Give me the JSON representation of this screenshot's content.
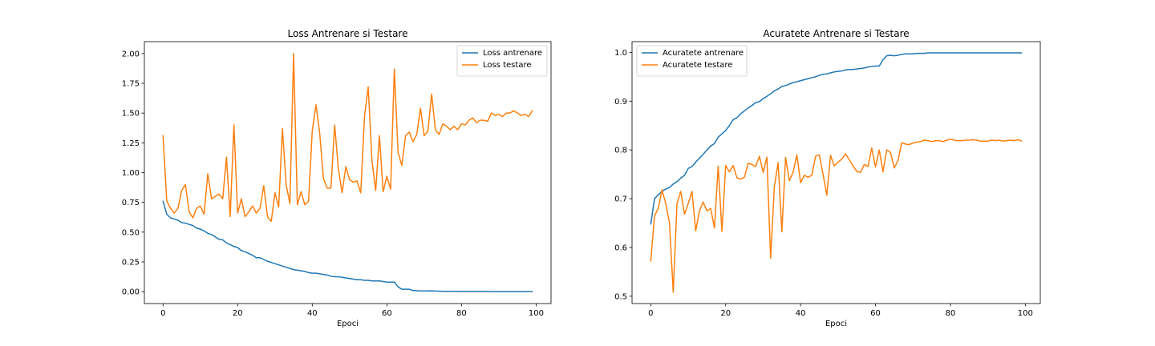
{
  "colors": {
    "series_1": "#1f77b4",
    "series_2": "#ff7f0e",
    "axes": "#000000",
    "background": "#ffffff"
  },
  "chart_data": [
    {
      "type": "line",
      "title": "Loss Antrenare si Testare",
      "xlabel": "Epoci",
      "ylabel": "",
      "xlim": [
        -5,
        104
      ],
      "ylim": [
        -0.1,
        2.1
      ],
      "xticks": [
        0,
        20,
        40,
        60,
        80,
        100
      ],
      "xtick_labels": [
        "0",
        "20",
        "40",
        "60",
        "80",
        "100"
      ],
      "yticks": [
        0,
        0.25,
        0.5,
        0.75,
        1.0,
        1.25,
        1.5,
        1.75,
        2.0
      ],
      "ytick_labels": [
        "0.00",
        "0.25",
        "0.50",
        "0.75",
        "1.00",
        "1.25",
        "1.50",
        "1.75",
        "2.00"
      ],
      "grid": false,
      "legend_position": "top-right",
      "series": [
        {
          "name": "Loss antrenare",
          "color": "#1f77b4",
          "values": [
            0.76,
            0.65,
            0.62,
            0.61,
            0.6,
            0.58,
            0.575,
            0.565,
            0.555,
            0.535,
            0.525,
            0.51,
            0.49,
            0.48,
            0.46,
            0.44,
            0.435,
            0.41,
            0.395,
            0.38,
            0.37,
            0.345,
            0.335,
            0.32,
            0.305,
            0.285,
            0.285,
            0.27,
            0.255,
            0.245,
            0.235,
            0.225,
            0.215,
            0.205,
            0.195,
            0.185,
            0.18,
            0.175,
            0.17,
            0.16,
            0.155,
            0.155,
            0.15,
            0.145,
            0.14,
            0.13,
            0.125,
            0.125,
            0.12,
            0.115,
            0.11,
            0.105,
            0.1,
            0.1,
            0.095,
            0.095,
            0.09,
            0.09,
            0.09,
            0.085,
            0.08,
            0.08,
            0.08,
            0.04,
            0.02,
            0.02,
            0.02,
            0.01,
            0.008,
            0.006,
            0.006,
            0.006,
            0.007,
            0.005,
            0.004,
            0.003,
            0.003,
            0.003,
            0.003,
            0.003,
            0.002,
            0.002,
            0.002,
            0.002,
            0.002,
            0.002,
            0.002,
            0.002,
            0.001,
            0.001,
            0.001,
            0.001,
            0.001,
            0.001,
            0.001,
            0.001,
            0.001,
            0.001,
            0.001,
            0.001
          ]
        },
        {
          "name": "Loss testare",
          "color": "#ff7f0e",
          "values": [
            1.31,
            0.76,
            0.7,
            0.66,
            0.7,
            0.85,
            0.9,
            0.67,
            0.62,
            0.7,
            0.72,
            0.65,
            0.99,
            0.78,
            0.8,
            0.82,
            0.78,
            1.13,
            0.63,
            1.4,
            0.66,
            0.78,
            0.63,
            0.67,
            0.72,
            0.66,
            0.7,
            0.89,
            0.63,
            0.59,
            0.83,
            0.71,
            1.37,
            0.9,
            0.74,
            2.0,
            0.73,
            0.84,
            0.73,
            0.76,
            1.35,
            1.57,
            1.33,
            0.95,
            0.87,
            0.87,
            1.4,
            1.03,
            0.83,
            1.05,
            0.94,
            0.92,
            0.93,
            0.83,
            1.47,
            1.72,
            1.1,
            0.85,
            1.31,
            0.84,
            0.97,
            0.86,
            1.87,
            1.17,
            1.06,
            1.31,
            1.34,
            1.26,
            1.32,
            1.54,
            1.31,
            1.35,
            1.66,
            1.36,
            1.32,
            1.41,
            1.39,
            1.36,
            1.39,
            1.36,
            1.41,
            1.4,
            1.44,
            1.46,
            1.42,
            1.44,
            1.44,
            1.43,
            1.5,
            1.48,
            1.49,
            1.47,
            1.5,
            1.5,
            1.52,
            1.5,
            1.48,
            1.49,
            1.47,
            1.52
          ]
        }
      ]
    },
    {
      "type": "line",
      "title": "Acuratete Antrenare si Testare",
      "xlabel": "Epoci",
      "ylabel": "",
      "xlim": [
        -5,
        104
      ],
      "ylim": [
        0.485,
        1.022
      ],
      "xticks": [
        0,
        20,
        40,
        60,
        80,
        100
      ],
      "xtick_labels": [
        "0",
        "20",
        "40",
        "60",
        "80",
        "100"
      ],
      "yticks": [
        0.5,
        0.6,
        0.7,
        0.8,
        0.9,
        1.0
      ],
      "ytick_labels": [
        "0.5",
        "0.6",
        "0.7",
        "0.8",
        "0.9",
        "1.0"
      ],
      "grid": false,
      "legend_position": "top-left",
      "series": [
        {
          "name": "Acuratete antrenare",
          "color": "#1f77b4",
          "values": [
            0.648,
            0.7,
            0.708,
            0.715,
            0.72,
            0.723,
            0.73,
            0.735,
            0.742,
            0.748,
            0.762,
            0.766,
            0.775,
            0.783,
            0.791,
            0.8,
            0.808,
            0.813,
            0.826,
            0.833,
            0.84,
            0.85,
            0.862,
            0.866,
            0.874,
            0.88,
            0.886,
            0.891,
            0.897,
            0.899,
            0.905,
            0.91,
            0.915,
            0.921,
            0.925,
            0.93,
            0.932,
            0.935,
            0.938,
            0.94,
            0.942,
            0.944,
            0.946,
            0.948,
            0.95,
            0.953,
            0.955,
            0.956,
            0.958,
            0.96,
            0.961,
            0.962,
            0.964,
            0.965,
            0.965,
            0.966,
            0.967,
            0.968,
            0.97,
            0.971,
            0.972,
            0.972,
            0.985,
            0.993,
            0.994,
            0.993,
            0.994,
            0.996,
            0.997,
            0.997,
            0.997,
            0.998,
            0.998,
            0.998,
            0.999,
            0.999,
            0.999,
            0.999,
            0.999,
            0.999,
            0.999,
            0.999,
            0.999,
            0.999,
            0.999,
            0.999,
            0.999,
            0.999,
            0.999,
            0.999,
            0.999,
            0.999,
            0.999,
            0.999,
            0.999,
            0.999,
            0.999,
            0.999,
            0.999,
            0.999
          ]
        },
        {
          "name": "Acuratete testare",
          "color": "#ff7f0e",
          "values": [
            0.572,
            0.665,
            0.68,
            0.718,
            0.69,
            0.65,
            0.508,
            0.69,
            0.715,
            0.668,
            0.69,
            0.715,
            0.634,
            0.675,
            0.693,
            0.675,
            0.68,
            0.64,
            0.767,
            0.633,
            0.768,
            0.755,
            0.768,
            0.743,
            0.74,
            0.744,
            0.773,
            0.77,
            0.766,
            0.787,
            0.754,
            0.785,
            0.578,
            0.725,
            0.774,
            0.632,
            0.785,
            0.737,
            0.754,
            0.79,
            0.733,
            0.748,
            0.744,
            0.748,
            0.787,
            0.79,
            0.75,
            0.707,
            0.789,
            0.767,
            0.775,
            0.781,
            0.792,
            0.78,
            0.767,
            0.756,
            0.754,
            0.77,
            0.766,
            0.804,
            0.765,
            0.8,
            0.755,
            0.8,
            0.795,
            0.763,
            0.778,
            0.815,
            0.812,
            0.811,
            0.814,
            0.816,
            0.817,
            0.82,
            0.819,
            0.817,
            0.819,
            0.819,
            0.817,
            0.82,
            0.822,
            0.82,
            0.819,
            0.819,
            0.82,
            0.82,
            0.821,
            0.82,
            0.818,
            0.818,
            0.818,
            0.82,
            0.819,
            0.82,
            0.818,
            0.819,
            0.82,
            0.819,
            0.821,
            0.818
          ]
        }
      ]
    }
  ]
}
